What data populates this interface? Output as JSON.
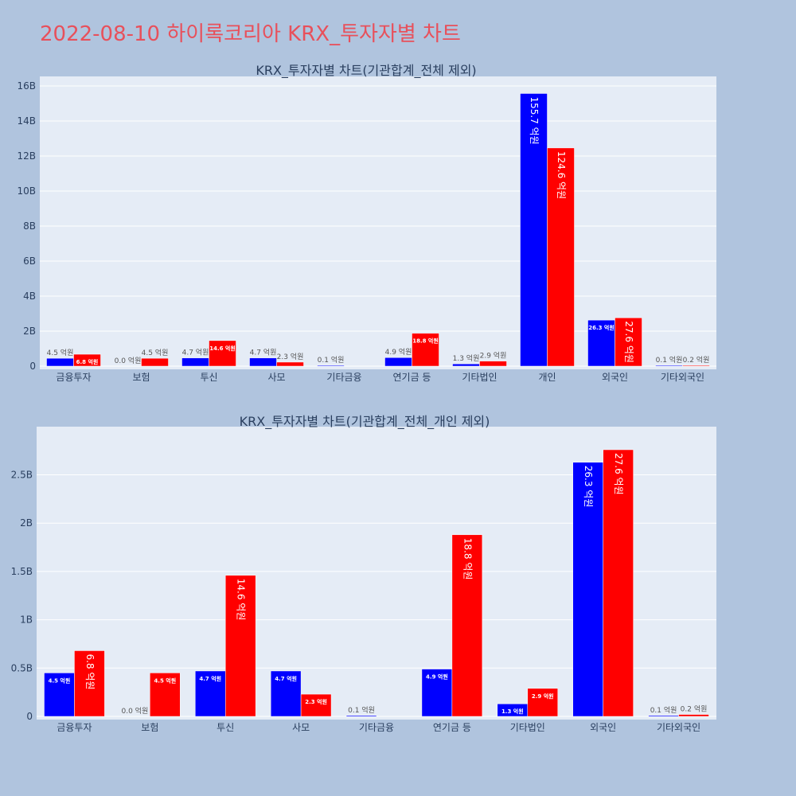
{
  "page": {
    "title": "2022-08-10 하이록코리아 KRX_투자자별 차트"
  },
  "colors": {
    "buy": "#0000ff",
    "sell": "#ff0000",
    "plot_bg": "#e5ecf6",
    "page_bg": "#b0c4de"
  },
  "chart_data": [
    {
      "type": "bar",
      "title": "KRX_투자자별 차트(기관합계_전체 제외)",
      "categories": [
        "금융투자",
        "보험",
        "투신",
        "사모",
        "기타금융",
        "연기금 등",
        "기타법인",
        "개인",
        "외국인",
        "기타외국인"
      ],
      "series": [
        {
          "values": [
            450000000,
            0,
            470000000,
            470000000,
            10000000,
            490000000,
            130000000,
            15570000000,
            2630000000,
            10000000
          ],
          "labels": [
            "4.5 억원",
            "0.0 억원",
            "4.7 억원",
            "4.7 억원",
            "0.1 억원",
            "4.9 억원",
            "1.3 억원",
            "155.7 억원",
            "26.3 억원",
            "0.1 억원"
          ]
        },
        {
          "values": [
            680000000,
            450000000,
            1460000000,
            230000000,
            0,
            1880000000,
            290000000,
            12460000000,
            2760000000,
            20000000
          ],
          "labels": [
            "6.8 억원",
            "4.5 억원",
            "14.6 억원",
            "2.3 억원",
            "",
            "18.8 억원",
            "2.9 억원",
            "124.6 억원",
            "27.6 억원",
            "0.2 억원"
          ]
        }
      ],
      "ylim": [
        0,
        16000000000
      ],
      "yticks": [
        0,
        2000000000,
        4000000000,
        6000000000,
        8000000000,
        10000000000,
        12000000000,
        14000000000,
        16000000000
      ],
      "ytick_labels": [
        "0",
        "2B",
        "4B",
        "6B",
        "8B",
        "10B",
        "12B",
        "14B",
        "16B"
      ],
      "grid": true
    },
    {
      "type": "bar",
      "title": "KRX_투자자별 차트(기관합계_전체_개인 제외)",
      "categories": [
        "금융투자",
        "보험",
        "투신",
        "사모",
        "기타금융",
        "연기금 등",
        "기타법인",
        "외국인",
        "기타외국인"
      ],
      "series": [
        {
          "values": [
            450000000,
            0,
            470000000,
            470000000,
            10000000,
            490000000,
            130000000,
            2630000000,
            10000000
          ],
          "labels": [
            "4.5 억원",
            "0.0 억원",
            "4.7 억원",
            "4.7 억원",
            "0.1 억원",
            "4.9 억원",
            "1.3 억원",
            "26.3 억원",
            "0.1 억원"
          ]
        },
        {
          "values": [
            680000000,
            450000000,
            1460000000,
            230000000,
            0,
            1880000000,
            290000000,
            2760000000,
            20000000
          ],
          "labels": [
            "6.8 억원",
            "4.5 억원",
            "14.6 억원",
            "2.3 억원",
            "",
            "18.8 억원",
            "2.9 억원",
            "27.6 억원",
            "0.2 억원"
          ]
        }
      ],
      "ylim": [
        0,
        2900000000
      ],
      "yticks": [
        0,
        500000000,
        1000000000,
        1500000000,
        2000000000,
        2500000000
      ],
      "ytick_labels": [
        "0",
        "0.5B",
        "1B",
        "1.5B",
        "2B",
        "2.5B"
      ],
      "grid": true
    }
  ]
}
